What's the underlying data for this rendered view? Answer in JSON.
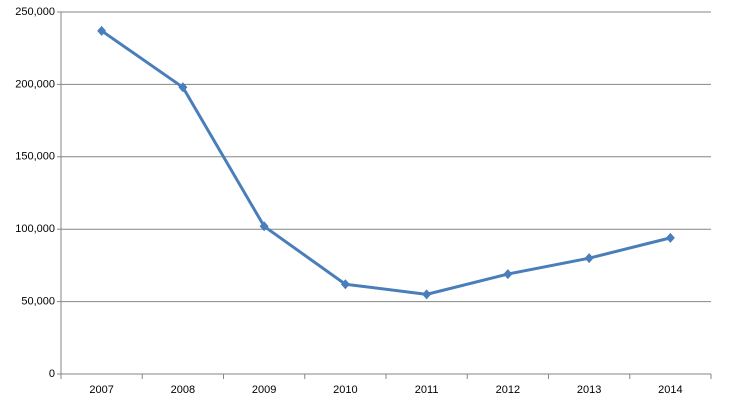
{
  "chart_data": {
    "type": "line",
    "categories": [
      "2007",
      "2008",
      "2009",
      "2010",
      "2011",
      "2012",
      "2013",
      "2014"
    ],
    "series": [
      {
        "color": "#4a7ebb",
        "values": [
          237000,
          198000,
          102000,
          62000,
          55000,
          69000,
          80000,
          94000
        ]
      }
    ],
    "ylim": [
      0,
      250000
    ],
    "yticks": [
      0,
      {
        "value": 50000,
        "label": "50,000"
      },
      {
        "value": 100000,
        "label": "100,000"
      },
      {
        "value": 150000,
        "label": "150,000"
      },
      {
        "value": 200000,
        "label": "200,000"
      },
      {
        "value": 250000,
        "label": "250,000"
      }
    ],
    "grid": true
  }
}
